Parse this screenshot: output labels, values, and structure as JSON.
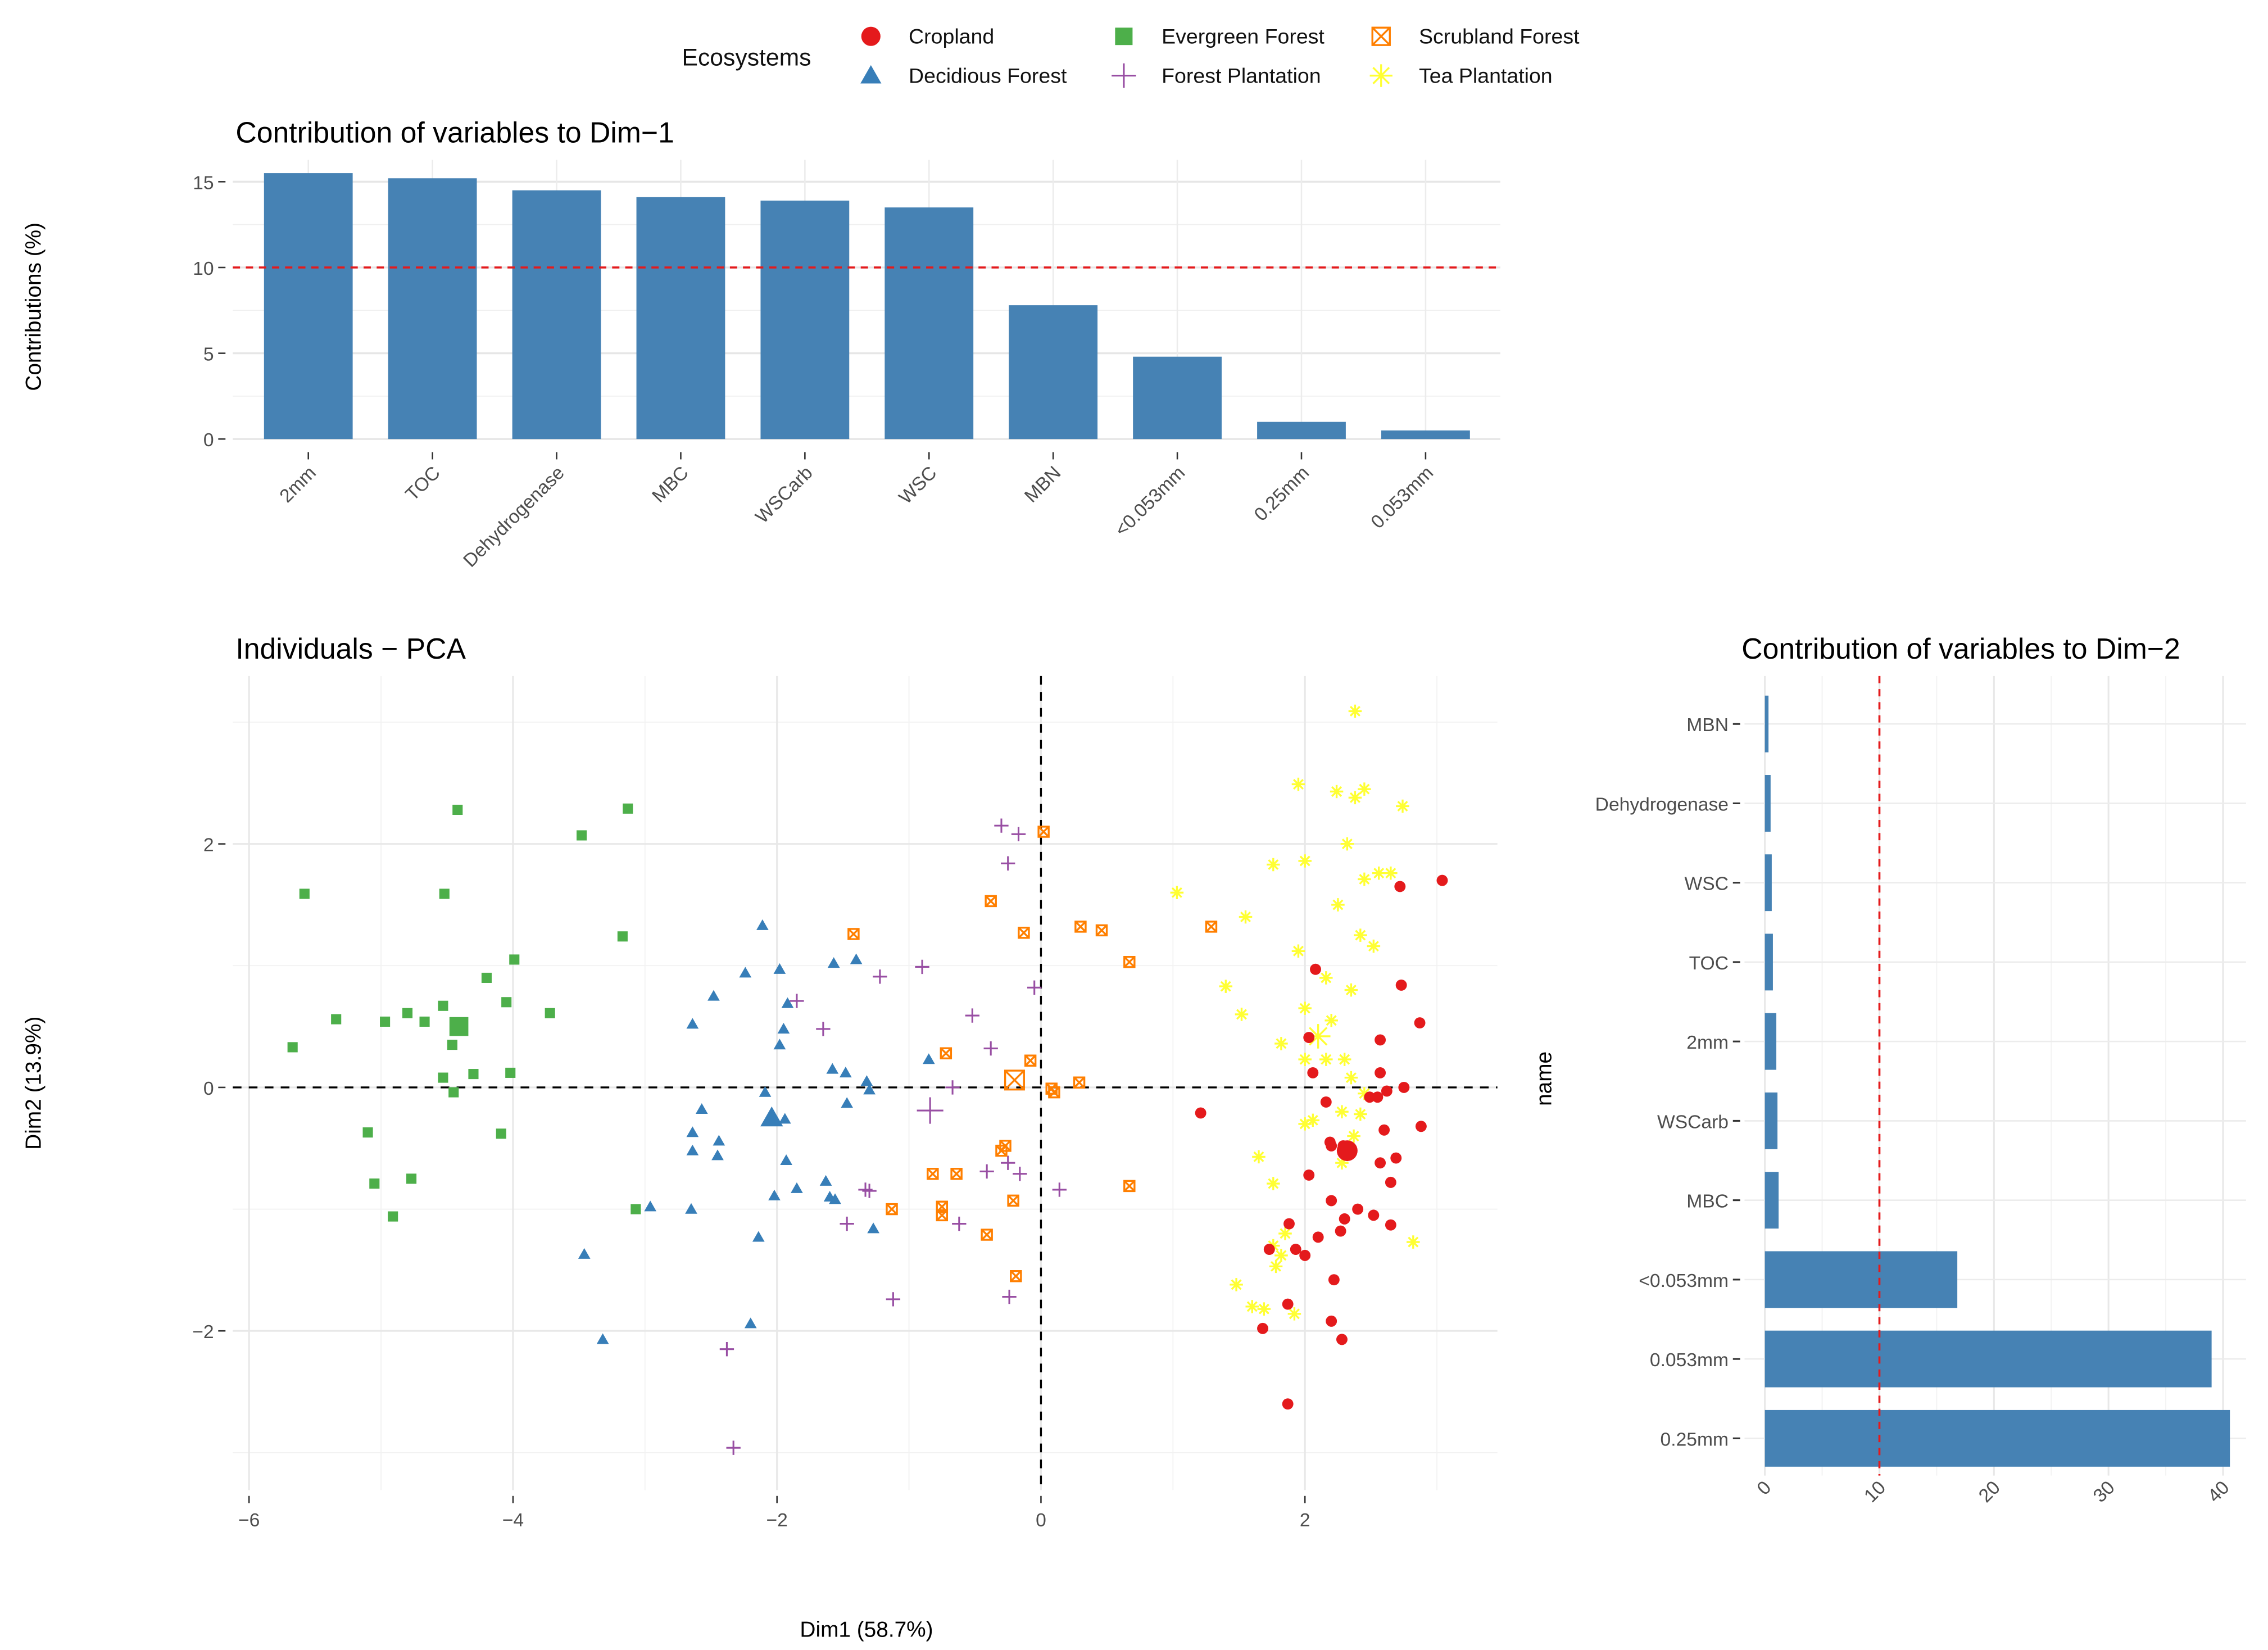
{
  "legend": {
    "title": "Ecosystems",
    "items": [
      {
        "label": "Cropland",
        "color": "#e41a1c",
        "shape": "circle"
      },
      {
        "label": "Decidious Forest",
        "color": "#377eb8",
        "shape": "triangle"
      },
      {
        "label": "Evergreen Forest",
        "color": "#4daf4a",
        "shape": "square"
      },
      {
        "label": "Forest Plantation",
        "color": "#984ea3",
        "shape": "plus"
      },
      {
        "label": "Scrubland Forest",
        "color": "#ff7f00",
        "shape": "boxed-x"
      },
      {
        "label": "Tea Plantation",
        "color": "#ffff33",
        "shape": "asterisk"
      }
    ]
  },
  "chart_data": [
    {
      "type": "bar",
      "title": "Contribution of variables to Dim−1",
      "ylabel": "Contributions (%)",
      "xlabel": "",
      "categories": [
        "2mm",
        "TOC",
        "Dehydrogenase",
        "MBC",
        "WSCarb",
        "WSC",
        "MBN",
        "<0.053mm",
        "0.25mm",
        "0.053mm"
      ],
      "values": [
        15.5,
        15.2,
        14.5,
        14.1,
        13.9,
        13.5,
        7.8,
        4.8,
        1.0,
        0.5
      ],
      "yticks": [
        "0",
        "5",
        "10",
        "15"
      ],
      "ylim": [
        0,
        16.3
      ],
      "reference_line": 10,
      "bar_color": "#4682b4",
      "line_color": "#e41a1c"
    },
    {
      "type": "scatter",
      "title": "Individuals − PCA",
      "xlabel": "Dim1 (58.7%)",
      "ylabel": "Dim2 (13.9%)",
      "xticks": [
        "−6",
        "−4",
        "−2",
        "0",
        "2"
      ],
      "yticks": [
        "−2",
        "0",
        "2"
      ],
      "xlim": [
        -6.1,
        3.4
      ],
      "ylim": [
        -3.31,
        3.38
      ],
      "series": [
        {
          "name": "Evergreen Forest",
          "mean": [
            -4.41,
            0.5
          ],
          "points": [
            [
              -5.58,
              1.59
            ],
            [
              -4.42,
              2.28
            ],
            [
              -3.13,
              2.29
            ],
            [
              -3.48,
              2.07
            ],
            [
              -4.52,
              1.59
            ],
            [
              -3.17,
              1.24
            ],
            [
              -3.99,
              1.05
            ],
            [
              -4.2,
              0.9
            ],
            [
              -4.05,
              0.7
            ],
            [
              -3.72,
              0.61
            ],
            [
              -5.34,
              0.56
            ],
            [
              -4.97,
              0.54
            ],
            [
              -4.8,
              0.61
            ],
            [
              -4.67,
              0.54
            ],
            [
              -4.53,
              0.67
            ],
            [
              -5.67,
              0.33
            ],
            [
              -4.46,
              0.35
            ],
            [
              -4.3,
              0.11
            ],
            [
              -4.02,
              0.12
            ],
            [
              -4.53,
              0.08
            ],
            [
              -4.45,
              -0.04
            ],
            [
              -5.1,
              -0.37
            ],
            [
              -4.09,
              -0.38
            ],
            [
              -5.05,
              -0.79
            ],
            [
              -4.77,
              -0.75
            ],
            [
              -4.91,
              -1.06
            ],
            [
              -3.07,
              -1.0
            ]
          ]
        },
        {
          "name": "Decidious Forest",
          "mean": [
            -2.04,
            -0.25
          ],
          "points": [
            [
              -2.11,
              1.33
            ],
            [
              -1.57,
              1.02
            ],
            [
              -1.4,
              1.05
            ],
            [
              -1.98,
              0.97
            ],
            [
              -2.24,
              0.94
            ],
            [
              -2.48,
              0.75
            ],
            [
              -2.64,
              0.52
            ],
            [
              -1.92,
              0.69
            ],
            [
              -1.95,
              0.48
            ],
            [
              -1.98,
              0.35
            ],
            [
              -1.58,
              0.15
            ],
            [
              -1.48,
              0.12
            ],
            [
              -1.32,
              0.05
            ],
            [
              -1.3,
              -0.02
            ],
            [
              -0.85,
              0.23
            ],
            [
              -2.09,
              -0.04
            ],
            [
              -1.47,
              -0.13
            ],
            [
              -1.94,
              -0.26
            ],
            [
              -2.57,
              -0.18
            ],
            [
              -2.64,
              -0.37
            ],
            [
              -2.44,
              -0.44
            ],
            [
              -2.64,
              -0.52
            ],
            [
              -2.45,
              -0.56
            ],
            [
              -1.93,
              -0.6
            ],
            [
              -1.63,
              -0.77
            ],
            [
              -1.6,
              -0.9
            ],
            [
              -1.56,
              -0.92
            ],
            [
              -1.85,
              -0.83
            ],
            [
              -2.02,
              -0.89
            ],
            [
              -1.27,
              -1.16
            ],
            [
              -2.65,
              -1.0
            ],
            [
              -2.96,
              -0.98
            ],
            [
              -3.46,
              -1.37
            ],
            [
              -2.14,
              -1.23
            ],
            [
              -2.2,
              -1.94
            ],
            [
              -3.32,
              -2.07
            ]
          ]
        },
        {
          "name": "Forest Plantation",
          "mean": [
            -0.84,
            -0.19
          ],
          "points": [
            [
              -0.3,
              2.15
            ],
            [
              -0.17,
              2.08
            ],
            [
              -0.25,
              1.84
            ],
            [
              -0.9,
              0.99
            ],
            [
              -1.22,
              0.91
            ],
            [
              -0.05,
              0.82
            ],
            [
              -1.85,
              0.71
            ],
            [
              -1.65,
              0.48
            ],
            [
              -0.52,
              0.59
            ],
            [
              -0.38,
              0.32
            ],
            [
              -0.67,
              0.0
            ],
            [
              -0.41,
              -0.69
            ],
            [
              -0.25,
              -0.62
            ],
            [
              -0.16,
              -0.71
            ],
            [
              -1.3,
              -0.85
            ],
            [
              -1.33,
              -0.84
            ],
            [
              -0.62,
              -1.12
            ],
            [
              -1.47,
              -1.12
            ],
            [
              0.14,
              -0.84
            ],
            [
              -1.12,
              -1.74
            ],
            [
              -0.24,
              -1.72
            ],
            [
              -2.38,
              -2.15
            ],
            [
              -2.33,
              -2.96
            ]
          ]
        },
        {
          "name": "Scrubland Forest",
          "mean": [
            -0.2,
            0.06
          ],
          "points": [
            [
              0.02,
              2.1
            ],
            [
              -0.38,
              1.53
            ],
            [
              -1.42,
              1.26
            ],
            [
              -0.13,
              1.27
            ],
            [
              0.3,
              1.32
            ],
            [
              0.46,
              1.29
            ],
            [
              0.67,
              1.03
            ],
            [
              1.29,
              1.32
            ],
            [
              -0.72,
              0.28
            ],
            [
              -0.08,
              0.22
            ],
            [
              0.29,
              0.04
            ],
            [
              0.08,
              -0.01
            ],
            [
              0.1,
              -0.04
            ],
            [
              -0.27,
              -0.48
            ],
            [
              -0.3,
              -0.52
            ],
            [
              -0.82,
              -0.71
            ],
            [
              -0.64,
              -0.71
            ],
            [
              -0.21,
              -0.93
            ],
            [
              -1.13,
              -1.0
            ],
            [
              -0.75,
              -0.98
            ],
            [
              -0.75,
              -1.05
            ],
            [
              -0.41,
              -1.21
            ],
            [
              -0.19,
              -1.55
            ],
            [
              0.67,
              -0.81
            ]
          ]
        },
        {
          "name": "Tea Plantation",
          "mean": [
            2.1,
            0.42
          ],
          "points": [
            [
              2.38,
              3.09
            ],
            [
              1.95,
              2.49
            ],
            [
              2.24,
              2.43
            ],
            [
              2.45,
              2.45
            ],
            [
              2.38,
              2.38
            ],
            [
              2.74,
              2.31
            ],
            [
              2.32,
              2.0
            ],
            [
              1.76,
              1.83
            ],
            [
              2.0,
              1.86
            ],
            [
              2.45,
              1.71
            ],
            [
              2.56,
              1.76
            ],
            [
              2.65,
              1.76
            ],
            [
              1.03,
              1.6
            ],
            [
              2.25,
              1.5
            ],
            [
              1.55,
              1.4
            ],
            [
              1.95,
              1.12
            ],
            [
              2.42,
              1.25
            ],
            [
              2.52,
              1.16
            ],
            [
              1.4,
              0.83
            ],
            [
              1.52,
              0.6
            ],
            [
              2.0,
              0.65
            ],
            [
              2.16,
              0.9
            ],
            [
              2.35,
              0.8
            ],
            [
              2.2,
              0.55
            ],
            [
              1.82,
              0.36
            ],
            [
              2.0,
              0.23
            ],
            [
              2.16,
              0.23
            ],
            [
              2.3,
              0.23
            ],
            [
              2.35,
              0.08
            ],
            [
              2.45,
              -0.05
            ],
            [
              2.0,
              -0.3
            ],
            [
              2.06,
              -0.27
            ],
            [
              2.28,
              -0.2
            ],
            [
              2.42,
              -0.22
            ],
            [
              2.37,
              -0.4
            ],
            [
              2.28,
              -0.62
            ],
            [
              1.65,
              -0.57
            ],
            [
              1.76,
              -0.79
            ],
            [
              1.48,
              -1.62
            ],
            [
              1.76,
              -1.3
            ],
            [
              1.82,
              -1.38
            ],
            [
              1.78,
              -1.47
            ],
            [
              1.6,
              -1.8
            ],
            [
              1.69,
              -1.82
            ],
            [
              1.92,
              -1.86
            ],
            [
              2.82,
              -1.27
            ],
            [
              1.85,
              -1.2
            ]
          ]
        },
        {
          "name": "Cropland",
          "mean": [
            2.32,
            -0.52
          ],
          "points": [
            [
              3.04,
              1.7
            ],
            [
              2.72,
              1.65
            ],
            [
              2.08,
              0.97
            ],
            [
              2.73,
              0.84
            ],
            [
              2.87,
              0.53
            ],
            [
              2.03,
              0.41
            ],
            [
              2.57,
              0.39
            ],
            [
              2.06,
              0.12
            ],
            [
              2.57,
              0.12
            ],
            [
              2.75,
              0.0
            ],
            [
              2.88,
              -0.32
            ],
            [
              2.6,
              -0.35
            ],
            [
              2.16,
              -0.12
            ],
            [
              2.49,
              -0.08
            ],
            [
              2.55,
              -0.08
            ],
            [
              2.62,
              -0.03
            ],
            [
              1.21,
              -0.21
            ],
            [
              2.2,
              -0.48
            ],
            [
              2.29,
              -0.48
            ],
            [
              2.03,
              -0.72
            ],
            [
              2.19,
              -0.45
            ],
            [
              2.65,
              -0.78
            ],
            [
              2.69,
              -0.58
            ],
            [
              2.57,
              -0.62
            ],
            [
              2.2,
              -0.93
            ],
            [
              2.4,
              -1.0
            ],
            [
              2.3,
              -1.08
            ],
            [
              2.52,
              -1.05
            ],
            [
              2.65,
              -1.13
            ],
            [
              1.88,
              -1.12
            ],
            [
              2.1,
              -1.23
            ],
            [
              2.27,
              -1.18
            ],
            [
              1.93,
              -1.33
            ],
            [
              1.73,
              -1.33
            ],
            [
              2.0,
              -1.38
            ],
            [
              2.22,
              -1.58
            ],
            [
              1.87,
              -1.78
            ],
            [
              2.2,
              -1.92
            ],
            [
              2.28,
              -2.07
            ],
            [
              1.87,
              -2.6
            ],
            [
              1.68,
              -1.98
            ]
          ]
        }
      ]
    },
    {
      "type": "bar",
      "orientation": "horizontal",
      "title": "Contribution of variables to Dim−2",
      "ylabel": "name",
      "xlabel": "",
      "categories": [
        "MBN",
        "Dehydrogenase",
        "WSC",
        "TOC",
        "2mm",
        "WSCarb",
        "MBC",
        "<0.053mm",
        "0.053mm",
        "0.25mm"
      ],
      "values": [
        0.3,
        0.5,
        0.6,
        0.7,
        1.0,
        1.1,
        1.2,
        16.8,
        39.0,
        40.6
      ],
      "xticks": [
        "0",
        "10",
        "20",
        "30",
        "40"
      ],
      "xlim": [
        -1.8,
        42
      ],
      "reference_line": 10,
      "bar_color": "#4682b4",
      "line_color": "#e41a1c"
    }
  ]
}
